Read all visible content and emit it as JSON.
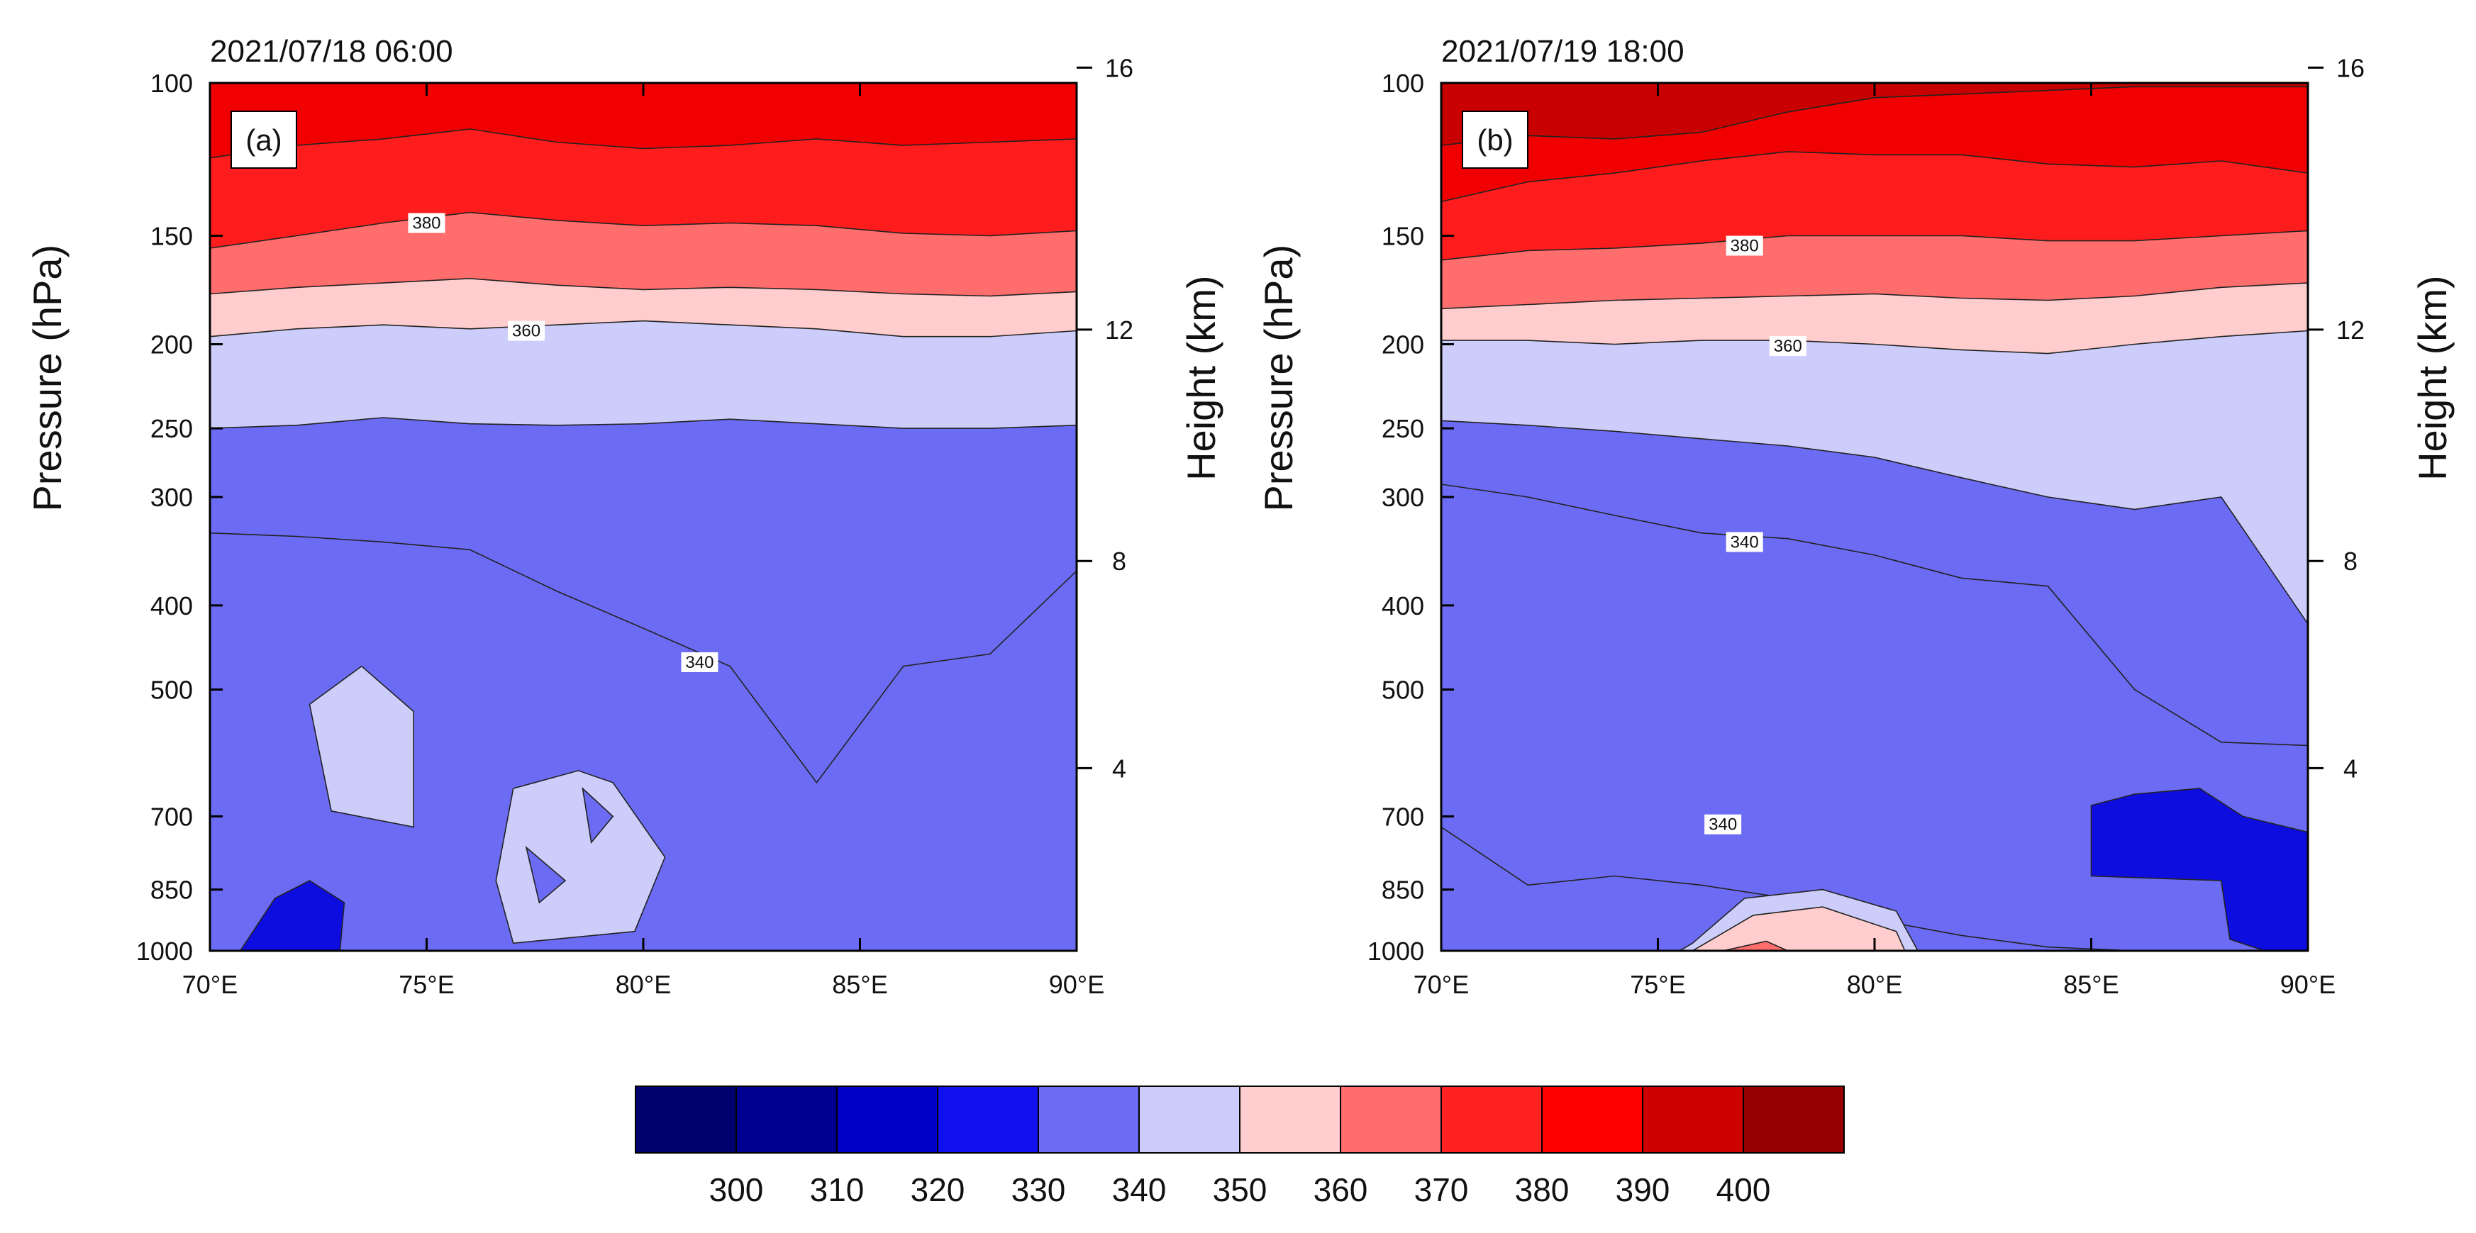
{
  "chart_data": [
    {
      "type": "contour",
      "panel_label": "(a)",
      "title": "2021/07/18 06:00",
      "xlabel": "",
      "ylabel": "Pressure (hPa)",
      "ylabel_right": "Height (km)",
      "x_ticks": [
        "70°E",
        "75°E",
        "80°E",
        "85°E",
        "90°E"
      ],
      "x_values": [
        70,
        75,
        80,
        85,
        90
      ],
      "y_ticks": [
        "100",
        "150",
        "200",
        "250",
        "300",
        "400",
        "500",
        "700",
        "850",
        "1000"
      ],
      "y_values": [
        100,
        150,
        200,
        250,
        300,
        400,
        500,
        700,
        850,
        1000
      ],
      "y_right_ticks": [
        "16",
        "12",
        "8",
        "4"
      ],
      "y_right_values": [
        16,
        12,
        8,
        4
      ],
      "xlim": [
        70,
        90
      ],
      "ylim": [
        1000,
        100
      ],
      "contour_labels": [
        {
          "text": "380",
          "lon": 75.0,
          "p": 145
        },
        {
          "text": "360",
          "lon": 77.3,
          "p": 193
        },
        {
          "text": "340",
          "lon": 81.3,
          "p": 465
        }
      ],
      "layers": [
        {
          "level": 340,
          "bottom": {
            "lon": [
              70,
              72,
              74,
              76,
              78,
              80,
              82,
              84,
              86,
              88,
              90
            ],
            "p": [
              330,
              333,
              338,
              345,
              385,
              425,
              470,
              640,
              470,
              455,
              365
            ]
          }
        },
        {
          "level": 350,
          "bottom": {
            "lon": [
              70,
              72,
              74,
              76,
              78,
              80,
              82,
              84,
              86,
              88,
              90
            ],
            "p": [
              250,
              248,
              243,
              247,
              248,
              247,
              244,
              247,
              250,
              250,
              248
            ]
          }
        },
        {
          "level": 360,
          "bottom": {
            "lon": [
              70,
              72,
              74,
              76,
              78,
              80,
              82,
              84,
              86,
              88,
              90
            ],
            "p": [
              196,
              192,
              190,
              192,
              190,
              188,
              190,
              192,
              196,
              196,
              193
            ]
          }
        },
        {
          "level": 370,
          "bottom": {
            "lon": [
              70,
              72,
              74,
              76,
              78,
              80,
              82,
              84,
              86,
              88,
              90
            ],
            "p": [
              175,
              172,
              170,
              168,
              171,
              173,
              172,
              173,
              175,
              176,
              174
            ]
          }
        },
        {
          "level": 380,
          "bottom": {
            "lon": [
              70,
              72,
              74,
              76,
              78,
              80,
              82,
              84,
              86,
              88,
              90
            ],
            "p": [
              155,
              150,
              145,
              141,
              144,
              146,
              145,
              146,
              149,
              150,
              148
            ]
          }
        },
        {
          "level": 390,
          "bottom": {
            "lon": [
              70,
              72,
              74,
              76,
              78,
              80,
              82,
              84,
              86,
              88,
              90
            ],
            "p": [
              122,
              118,
              116,
              113,
              117,
              119,
              118,
              116,
              118,
              117,
              116
            ]
          }
        }
      ],
      "blobs": [
        {
          "level": 350,
          "lon": [
            72.3,
            73.5,
            74.7,
            74.7,
            72.8
          ],
          "p": [
            520,
            470,
            530,
            720,
            690
          ]
        },
        {
          "level": 350,
          "lon": [
            77.0,
            78.5,
            79.3,
            80.5,
            79.8,
            77.0,
            76.6
          ],
          "p": [
            650,
            620,
            640,
            780,
            950,
            980,
            830
          ]
        },
        {
          "level": 340,
          "lon": [
            78.6,
            79.3,
            78.8
          ],
          "p": [
            650,
            700,
            750
          ]
        },
        {
          "level": 340,
          "lon": [
            77.3,
            78.2,
            77.6
          ],
          "p": [
            760,
            830,
            880
          ]
        },
        {
          "level": 330,
          "lon": [
            70.7,
            71.5,
            72.3,
            73.1,
            73.0
          ],
          "p": [
            1000,
            870,
            830,
            880,
            1000
          ]
        }
      ]
    },
    {
      "type": "contour",
      "panel_label": "(b)",
      "title": "2021/07/19 18:00",
      "xlabel": "",
      "ylabel": "Pressure (hPa)",
      "ylabel_right": "Height (km)",
      "x_ticks": [
        "70°E",
        "75°E",
        "80°E",
        "85°E",
        "90°E"
      ],
      "x_values": [
        70,
        75,
        80,
        85,
        90
      ],
      "y_ticks": [
        "100",
        "150",
        "200",
        "250",
        "300",
        "400",
        "500",
        "700",
        "850",
        "1000"
      ],
      "y_values": [
        100,
        150,
        200,
        250,
        300,
        400,
        500,
        700,
        850,
        1000
      ],
      "y_right_ticks": [
        "16",
        "12",
        "8",
        "4"
      ],
      "y_right_values": [
        16,
        12,
        8,
        4
      ],
      "xlim": [
        70,
        90
      ],
      "ylim": [
        1000,
        100
      ],
      "contour_labels": [
        {
          "text": "380",
          "lon": 77.0,
          "p": 154
        },
        {
          "text": "360",
          "lon": 78.0,
          "p": 201
        },
        {
          "text": "340",
          "lon": 77.0,
          "p": 338
        },
        {
          "text": "340",
          "lon": 76.5,
          "p": 715
        }
      ],
      "layers": [
        {
          "level": 340,
          "bottom": {
            "lon": [
              70,
              72,
              74,
              76,
              78,
              80,
              82,
              84,
              86,
              88,
              90
            ],
            "p": [
              720,
              840,
              820,
              840,
              870,
              920,
              960,
              990,
              1000,
              1000,
              1000
            ]
          }
        },
        {
          "level": 340,
          "bottom": {
            "lon": [
              70,
              72,
              74,
              76,
              78,
              80,
              82,
              84,
              86,
              88,
              90
            ],
            "p": [
              290,
              300,
              315,
              330,
              335,
              350,
              372,
              380,
              500,
              575,
              580
            ]
          }
        },
        {
          "level": 350,
          "bottom": {
            "lon": [
              70,
              72,
              74,
              76,
              78,
              80,
              82,
              84,
              86,
              88,
              90
            ],
            "p": [
              245,
              248,
              252,
              257,
              262,
              270,
              285,
              300,
              310,
              300,
              420
            ]
          }
        },
        {
          "level": 360,
          "bottom": {
            "lon": [
              70,
              72,
              74,
              76,
              78,
              80,
              82,
              84,
              86,
              88,
              90
            ],
            "p": [
              198,
              198,
              200,
              198,
              198,
              200,
              203,
              205,
              200,
              196,
              193
            ]
          }
        },
        {
          "level": 370,
          "bottom": {
            "lon": [
              70,
              72,
              74,
              76,
              78,
              80,
              82,
              84,
              86,
              88,
              90
            ],
            "p": [
              182,
              180,
              178,
              177,
              176,
              175,
              177,
              178,
              176,
              172,
              170
            ]
          }
        },
        {
          "level": 380,
          "bottom": {
            "lon": [
              70,
              72,
              74,
              76,
              78,
              80,
              82,
              84,
              86,
              88,
              90
            ],
            "p": [
              160,
              156,
              155,
              153,
              150,
              150,
              150,
              152,
              152,
              150,
              148
            ]
          }
        },
        {
          "level": 390,
          "bottom": {
            "lon": [
              70,
              72,
              74,
              76,
              78,
              80,
              82,
              84,
              86,
              88,
              90
            ],
            "p": [
              137,
              130,
              127,
              123,
              120,
              121,
              121,
              124,
              125,
              123,
              127
            ]
          }
        },
        {
          "level": 400,
          "bottom": {
            "lon": [
              70,
              72,
              74,
              76,
              78,
              80,
              82,
              84,
              86,
              88,
              90
            ],
            "p": [
              118,
              115,
              116,
              114,
              108,
              104,
              103,
              102,
              101,
              101,
              101
            ]
          }
        }
      ],
      "blobs": [
        {
          "level": 350,
          "lon": [
            75.8,
            77.0,
            78.8,
            80.5,
            81.0,
            75.5
          ],
          "p": [
            980,
            870,
            850,
            900,
            1000,
            1000
          ]
        },
        {
          "level": 360,
          "lon": [
            75.8,
            77.2,
            78.8,
            80.5,
            80.7,
            75.8
          ],
          "p": [
            1000,
            910,
            890,
            950,
            1000,
            1000
          ]
        },
        {
          "level": 370,
          "lon": [
            76.5,
            77.5,
            78.0,
            76.5
          ],
          "p": [
            1000,
            975,
            1000,
            1000
          ]
        },
        {
          "level": 330,
          "lon": [
            85.0,
            86.0,
            87.5,
            88.5,
            90.0,
            90.0,
            89.0,
            88.2,
            88.0,
            85.0
          ],
          "p": [
            680,
            660,
            650,
            700,
            730,
            1000,
            1000,
            970,
            830,
            820
          ]
        }
      ]
    }
  ],
  "colorbar": {
    "tick_labels": [
      "300",
      "310",
      "320",
      "330",
      "340",
      "350",
      "360",
      "370",
      "380",
      "390",
      "400"
    ],
    "colors": [
      "#00006e",
      "#000090",
      "#0000c8",
      "#1111f0",
      "#6b6cf3",
      "#cccdfb",
      "#ffcdcd",
      "#ff6d6d",
      "#ff2020",
      "#ff0000",
      "#cf0000",
      "#960000"
    ]
  },
  "level_colors": {
    "320": "#0000c8",
    "330": "#0d0de0",
    "340": "#6b6cf3",
    "350": "#cccdfb",
    "360": "#ffcdcd",
    "370": "#ff6d6d",
    "380": "#ff1c1c",
    "390": "#f00000",
    "400": "#c80000"
  }
}
